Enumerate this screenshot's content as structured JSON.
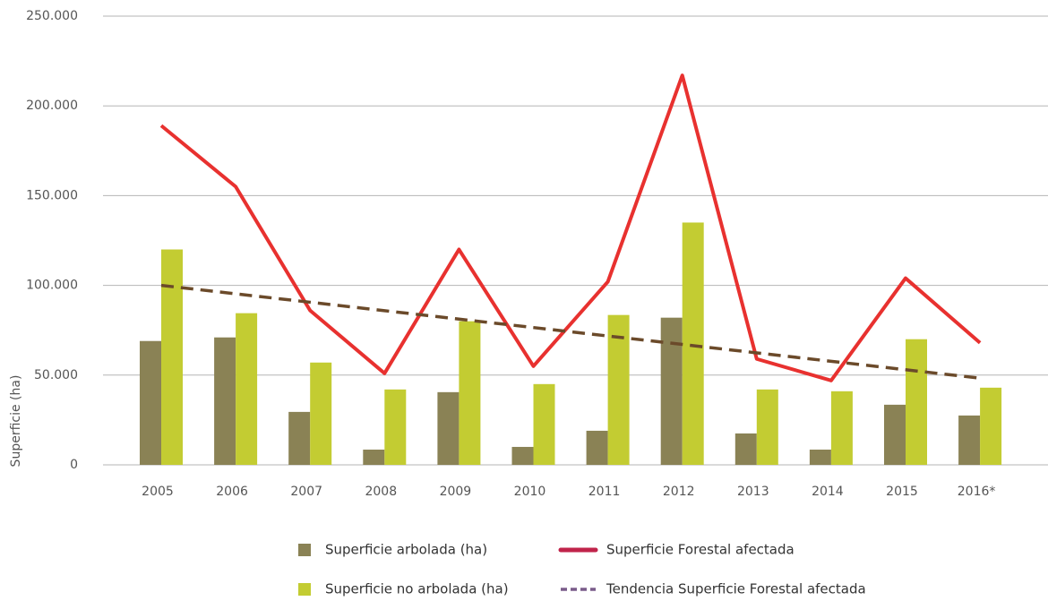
{
  "chart_data": {
    "type": "bar",
    "y_label": "Superficie (ha)",
    "categories": [
      "2005",
      "2006",
      "2007",
      "2008",
      "2009",
      "2010",
      "2011",
      "2012",
      "2013",
      "2014",
      "2015",
      "2016*"
    ],
    "series": [
      {
        "name": "Superficie arbolada (ha)",
        "type": "bar",
        "color": "#8a8255",
        "values": [
          69000,
          71000,
          29500,
          8500,
          40500,
          10000,
          19000,
          82000,
          17500,
          8500,
          33500,
          27500
        ]
      },
      {
        "name": "Superficie no arbolada (ha)",
        "type": "bar",
        "color": "#c3cc32",
        "values": [
          120000,
          84500,
          57000,
          42000,
          80000,
          45000,
          83500,
          135000,
          42000,
          41000,
          70000,
          43000
        ]
      },
      {
        "name": "Superficie Forestal afectada",
        "type": "line",
        "color": "#e8312f",
        "legend_color": "#c0234a",
        "values": [
          189000,
          155000,
          86000,
          51000,
          120000,
          55000,
          102000,
          217000,
          59000,
          47000,
          104000,
          68000
        ]
      },
      {
        "name": "Tendencia Superficie Forestal afectada",
        "type": "dashed-line",
        "color": "#6b4a2a",
        "legend_color": "#7a5c8a",
        "values": [
          100000,
          95300,
          90600,
          85900,
          81200,
          76500,
          71800,
          67100,
          62400,
          57700,
          53000,
          48300
        ]
      }
    ],
    "ylim": [
      0,
      250000
    ],
    "yticks": [
      0,
      {
        "value": 50000,
        "label": "50.000"
      },
      {
        "value": 100000,
        "label": "100.000"
      },
      {
        "value": 150000,
        "label": "150.000"
      },
      {
        "value": 200000,
        "label": "200.000"
      },
      {
        "value": 250000,
        "label": "250.000"
      }
    ],
    "grid": true
  }
}
